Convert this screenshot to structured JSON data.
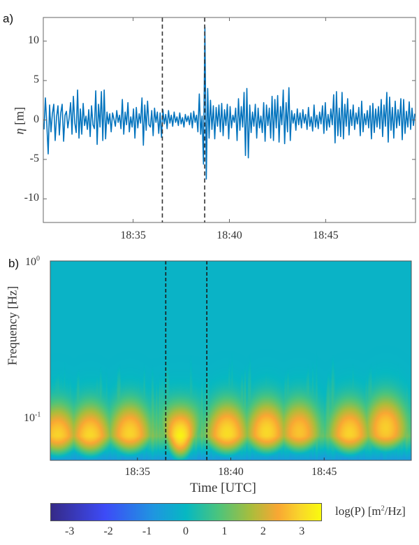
{
  "chart_data": [
    {
      "type": "line",
      "panel": "a)",
      "title": "",
      "xlabel": "",
      "ylabel": "η [m]",
      "ylabel_symbol": "η",
      "ylabel_unit": "[m]",
      "xlim": [
        "18:30:20",
        "18:49:40"
      ],
      "ylim": [
        -13,
        13
      ],
      "yticks": [
        10,
        5,
        0,
        -5,
        -10
      ],
      "xticks": [
        "18:35",
        "18:40",
        "18:45"
      ],
      "grid": false,
      "line_color": "#0072BD",
      "vertical_markers": [
        {
          "time": "18:36:31",
          "style": "dashed",
          "color": "#333333"
        },
        {
          "time": "18:38:43",
          "style": "dashed",
          "color": "#333333"
        }
      ],
      "annotations": [
        {
          "time": "18:37:10",
          "value": 11.8,
          "note": "peak"
        },
        {
          "time": "18:37:15",
          "value": -7.5,
          "note": "trough"
        }
      ],
      "series": [
        {
          "name": "eta",
          "x_start": "18:30:20",
          "x_end": "18:49:40",
          "values": [
            -1.2,
            2.8,
            -0.5,
            -4.3,
            1.9,
            -1.5,
            0.8,
            2.0,
            -2.6,
            0.4,
            1.8,
            -1.9,
            0.9,
            2.0,
            -2.7,
            0.6,
            1.1,
            -1.0,
            0.3,
            2.2,
            -1.8,
            3.0,
            -0.4,
            -1.6,
            3.8,
            -2.3,
            1.4,
            -1.8,
            2.1,
            -0.7,
            0.5,
            -1.2,
            1.3,
            -2.1,
            1.8,
            -0.6,
            -1.1,
            3.7,
            -3.1,
            2.0,
            -0.9,
            3.6,
            -2.6,
            3.8,
            -2.4,
            1.0,
            -0.5,
            0.8,
            -1.5,
            0.9,
            0.1,
            -0.8,
            1.2,
            -0.3,
            0.6,
            -1.1,
            2.6,
            -1.8,
            1.0,
            -0.6,
            2.2,
            -1.5,
            0.4,
            -0.9,
            1.4,
            -2.3,
            1.6,
            -1.0,
            0.8,
            -0.4,
            2.8,
            -3.2,
            1.9,
            -1.3,
            2.4,
            -0.6,
            -0.9,
            1.2,
            -2.0,
            1.5,
            -0.3,
            1.0,
            -1.7,
            0.9,
            -2.2,
            1.3,
            -0.5,
            0.7,
            -1.1,
            1.2,
            -0.4,
            0.6,
            -0.8,
            1.0,
            -0.3,
            0.4,
            -0.7,
            0.9,
            -0.5,
            0.3,
            -0.9,
            0.7,
            -0.2,
            0.5,
            -0.6,
            0.9,
            -1.0,
            1.1,
            -0.3,
            0.6,
            -1.5,
            3.3,
            -1.8,
            0.5,
            -5.6,
            11.8,
            -7.5,
            4.0,
            -2.3,
            2.5,
            -1.2,
            1.8,
            -2.4,
            1.6,
            -0.8,
            1.9,
            -1.5,
            2.1,
            -2.0,
            1.3,
            -0.7,
            2.0,
            -2.4,
            1.7,
            -1.0,
            0.6,
            -0.3,
            1.5,
            -2.6,
            2.7,
            -1.3,
            1.7,
            -0.9,
            3.5,
            -4.5,
            4.0,
            -4.8,
            1.9,
            -1.6,
            1.0,
            -0.8,
            2.0,
            -2.3,
            1.5,
            -1.0,
            0.5,
            -1.6,
            2.2,
            -2.7,
            1.9,
            -0.7,
            1.5,
            -2.3,
            3.0,
            -2.6,
            2.6,
            -1.0,
            3.1,
            -2.8,
            1.7,
            -0.6,
            3.8,
            -3.0,
            2.2,
            -1.5,
            4.1,
            -2.6,
            1.2,
            -0.4,
            0.8,
            -1.3,
            1.4,
            -0.6,
            0.9,
            -1.0,
            1.3,
            -0.4,
            0.7,
            -1.2,
            1.6,
            -0.8,
            0.4,
            -1.4,
            1.9,
            -0.9,
            0.6,
            -1.1,
            1.0,
            -0.5,
            1.8,
            -1.7,
            2.2,
            -1.3,
            0.7,
            -0.9,
            1.4,
            -0.6,
            3.2,
            -2.9,
            3.6,
            -2.0,
            1.5,
            -2.1,
            3.5,
            -2.4,
            2.0,
            -0.8,
            2.7,
            -1.9,
            1.3,
            -0.7,
            1.9,
            -1.2,
            0.9,
            -0.5,
            1.6,
            -2.0,
            2.4,
            -1.5,
            0.8,
            -0.6,
            1.2,
            -1.0,
            1.8,
            -2.4,
            2.1,
            -1.6,
            1.4,
            -0.9,
            1.7,
            -1.1,
            2.6,
            -2.1,
            1.9,
            -0.8,
            3.5,
            -2.8,
            2.9,
            -1.3,
            1.6,
            -2.3,
            2.4,
            -1.0,
            1.3,
            -0.7,
            2.7,
            -2.5,
            2.6,
            -1.7,
            1.1,
            -0.9,
            2.3,
            -1.2,
            1.5,
            -0.7,
            0.8
          ]
        }
      ]
    },
    {
      "type": "heatmap",
      "panel": "b)",
      "title": "",
      "xlabel": "Time [UTC]",
      "ylabel": "Frequency [Hz]",
      "xlim": [
        "18:30:20",
        "18:49:40"
      ],
      "ylim_hz": [
        0.053,
        1.0
      ],
      "yscale": "log",
      "yticks": [
        {
          "base": "10",
          "exp": "0",
          "value": 1.0
        },
        {
          "base": "10",
          "exp": "-1",
          "value": 0.1
        }
      ],
      "xticks": [
        "18:35",
        "18:40",
        "18:45"
      ],
      "colormap": "parula",
      "colormap_stops": [
        "#352A87",
        "#3D4BF7",
        "#1F96E0",
        "#06B8C2",
        "#4CC47C",
        "#A9BD3C",
        "#F9A733",
        "#F9D52B",
        "#F9FB0E"
      ],
      "vertical_markers": [
        {
          "time": "18:36:31",
          "style": "dashed",
          "color": "#1A1A1A"
        },
        {
          "time": "18:38:43",
          "style": "dashed",
          "color": "#1A1A1A"
        }
      ],
      "energy_hotspots": [
        {
          "time_frac": 0.02,
          "freq_hz": 0.075,
          "log_power": 2.6
        },
        {
          "time_frac": 0.11,
          "freq_hz": 0.075,
          "log_power": 2.7
        },
        {
          "time_frac": 0.22,
          "freq_hz": 0.078,
          "log_power": 2.6
        },
        {
          "time_frac": 0.36,
          "freq_hz": 0.072,
          "log_power": 3.4
        },
        {
          "time_frac": 0.49,
          "freq_hz": 0.078,
          "log_power": 2.8
        },
        {
          "time_frac": 0.6,
          "freq_hz": 0.08,
          "log_power": 2.7
        },
        {
          "time_frac": 0.69,
          "freq_hz": 0.08,
          "log_power": 2.3
        },
        {
          "time_frac": 0.83,
          "freq_hz": 0.078,
          "log_power": 2.6
        },
        {
          "time_frac": 0.93,
          "freq_hz": 0.085,
          "log_power": 2.5
        }
      ],
      "colorbar": {
        "label_prefix": "log(P) [m",
        "label_sup": "2",
        "label_suffix": "/Hz]",
        "ticks": [
          "-3",
          "-2",
          "-1",
          "0",
          "1",
          "2",
          "3"
        ],
        "range": [
          -3.5,
          3.5
        ]
      }
    }
  ],
  "panels": {
    "a": {
      "label": "a)",
      "ylabel_symbol": "η",
      "ylabel_unit": "[m]",
      "yticks": [
        "10",
        "5",
        "0",
        "-5",
        "-10"
      ],
      "xticks": [
        "18:35",
        "18:40",
        "18:45"
      ]
    },
    "b": {
      "label": "b)",
      "ylabel": "Frequency [Hz]",
      "xlabel": "Time [UTC]",
      "xticks": [
        "18:35",
        "18:40",
        "18:45"
      ],
      "ytick_top_base": "10",
      "ytick_top_exp": "0",
      "ytick_bot_base": "10",
      "ytick_bot_exp": "-1"
    },
    "colorbar": {
      "label_prefix": "log(P) [m",
      "label_sup": "2",
      "label_suffix": "/Hz]",
      "ticks": [
        "-3",
        "-2",
        "-1",
        "0",
        "1",
        "2",
        "3"
      ]
    }
  }
}
